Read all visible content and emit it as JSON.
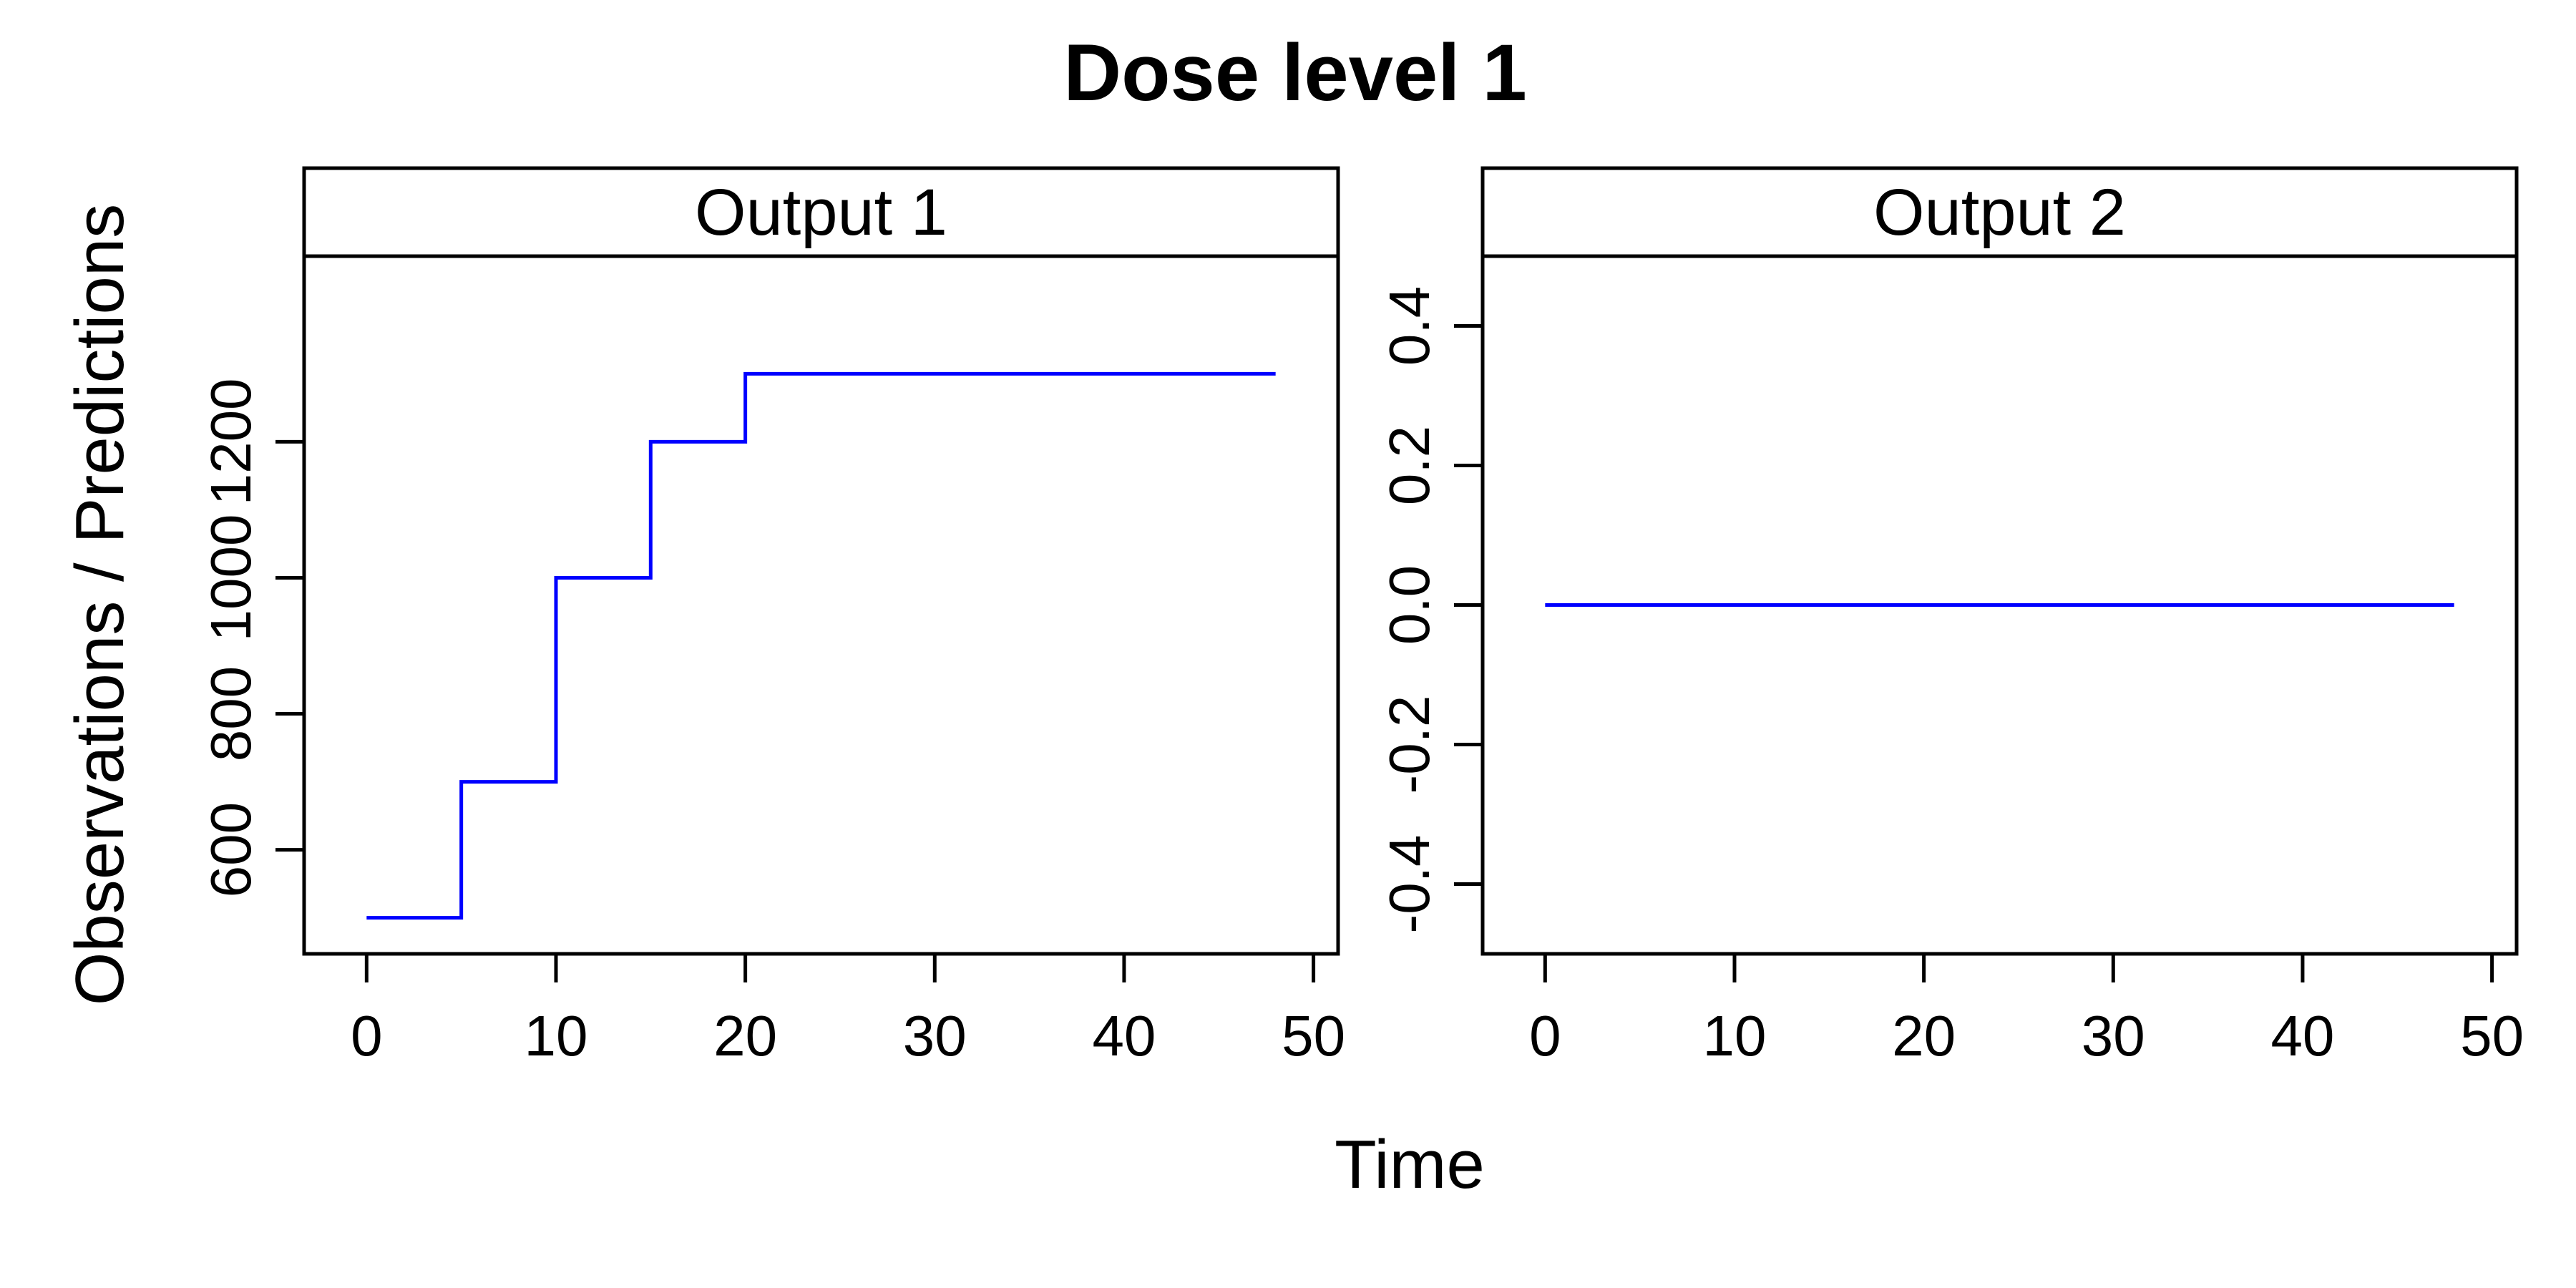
{
  "figure": {
    "title": "Dose level 1",
    "xlabel": "Time",
    "ylabel": "Observations / Predictions"
  },
  "chart_data": [
    {
      "type": "line",
      "strip_label": "Output 1",
      "xlim": [
        -3.3,
        51.3
      ],
      "ylim": [
        447,
        1473
      ],
      "x_ticks": [
        0,
        10,
        20,
        30,
        40,
        50
      ],
      "y_ticks": [
        600,
        800,
        1000,
        1200
      ],
      "grid": false,
      "series": [
        {
          "color": "#0000ff",
          "step": true,
          "points": [
            [
              0,
              500
            ],
            [
              5,
              700
            ],
            [
              10,
              1000
            ],
            [
              15,
              1200
            ],
            [
              20,
              1300
            ],
            [
              48,
              1300
            ]
          ]
        }
      ]
    },
    {
      "type": "line",
      "strip_label": "Output 2",
      "xlim": [
        -3.3,
        51.3
      ],
      "ylim": [
        -0.5,
        0.5
      ],
      "x_ticks": [
        0,
        10,
        20,
        30,
        40,
        50
      ],
      "y_ticks": [
        -0.4,
        -0.2,
        0.0,
        0.2,
        0.4
      ],
      "y_tick_labels": [
        "-0.4",
        "-0.2",
        "0.0",
        "0.2",
        "0.4"
      ],
      "grid": false,
      "series": [
        {
          "color": "#0000ff",
          "step": false,
          "points": [
            [
              0,
              0
            ],
            [
              48,
              0
            ]
          ]
        }
      ]
    }
  ]
}
